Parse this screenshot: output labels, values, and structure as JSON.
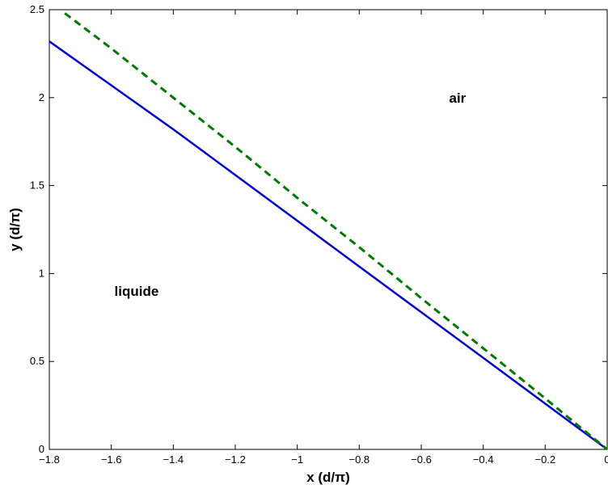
{
  "chart_data": {
    "type": "line",
    "xlabel": "x (d/π)",
    "ylabel": "y (d/π)",
    "xlim": [
      -1.8,
      0
    ],
    "ylim": [
      0,
      2.5
    ],
    "x_ticks": [
      -1.8,
      -1.6,
      -1.4,
      -1.2,
      -1,
      -0.8,
      -0.6,
      -0.4,
      -0.2,
      0
    ],
    "x_tick_labels": [
      "−1.8",
      "−1.6",
      "−1.4",
      "−1.2",
      "−1",
      "−0.8",
      "−0.6",
      "−0.4",
      "−0.2",
      "0"
    ],
    "y_ticks": [
      0,
      0.5,
      1,
      1.5,
      2,
      2.5
    ],
    "y_tick_labels": [
      "0",
      "0.5",
      "1",
      "1.5",
      "2",
      "2.5"
    ],
    "grid": false,
    "series": [
      {
        "style": "solid",
        "color": "#0000dd",
        "x": [
          -1.8,
          -1.6,
          -1.4,
          -1.2,
          -1.0,
          -0.8,
          -0.6,
          -0.4,
          -0.2,
          0
        ],
        "y": [
          2.32,
          2.07,
          1.82,
          1.56,
          1.3,
          1.04,
          0.78,
          0.52,
          0.26,
          0
        ]
      },
      {
        "style": "dashed",
        "color": "#007a00",
        "x": [
          -1.75,
          -1.6,
          -1.4,
          -1.2,
          -1.0,
          -0.8,
          -0.6,
          -0.4,
          -0.2,
          0
        ],
        "y": [
          2.48,
          2.28,
          2.0,
          1.72,
          1.43,
          1.15,
          0.86,
          0.575,
          0.29,
          0
        ]
      }
    ],
    "annotations": [
      {
        "text": "air",
        "x": -0.51,
        "y": 2.0
      },
      {
        "text": "liquide",
        "x": -1.59,
        "y": 0.9
      }
    ]
  }
}
